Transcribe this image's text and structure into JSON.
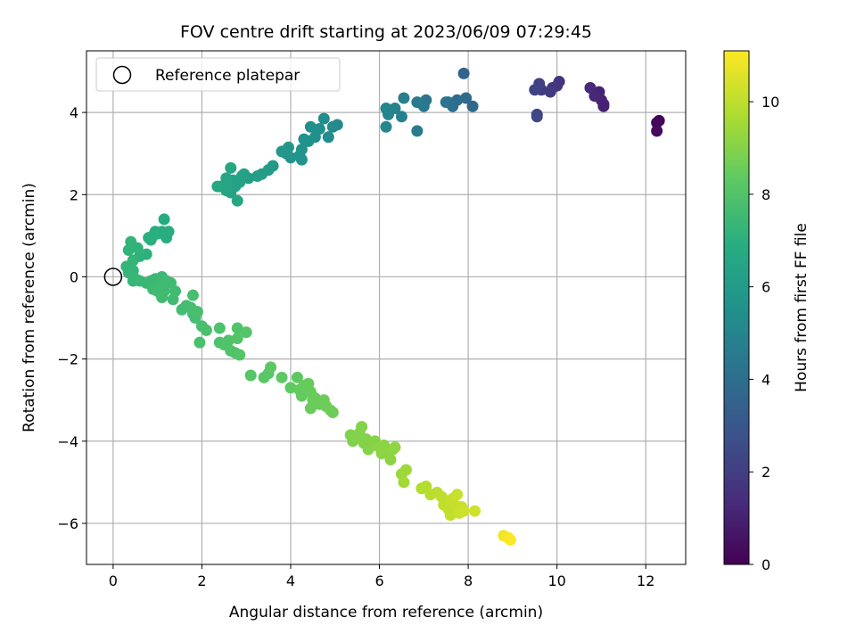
{
  "chart_data": {
    "type": "scatter",
    "title": "FOV centre drift starting at 2023/06/09 07:29:45",
    "xlabel": "Angular distance from reference (arcmin)",
    "ylabel": "Rotation from reference (arcmin)",
    "xlim": [
      -0.6,
      12.9
    ],
    "ylim": [
      -7.0,
      5.5
    ],
    "xticks": [
      0,
      2,
      4,
      6,
      8,
      10,
      12
    ],
    "yticks": [
      -6,
      -4,
      -2,
      0,
      2,
      4
    ],
    "grid": true,
    "legend": {
      "placement": "upper-left",
      "entries": [
        "Reference platepar"
      ]
    },
    "reference_point": {
      "x": 0,
      "y": 0,
      "label": "Reference platepar"
    },
    "colorbar": {
      "label": "Hours from first FF file",
      "colormap": "viridis",
      "range": [
        0,
        11.1
      ],
      "ticks": [
        0,
        2,
        4,
        6,
        8,
        10
      ]
    },
    "points": [
      {
        "x": 12.3,
        "y": 3.8,
        "c": 0.1
      },
      {
        "x": 12.25,
        "y": 3.75,
        "c": 0.2
      },
      {
        "x": 12.25,
        "y": 3.55,
        "c": 0.3
      },
      {
        "x": 11.05,
        "y": 4.2,
        "c": 1.0
      },
      {
        "x": 11.0,
        "y": 4.3,
        "c": 1.1
      },
      {
        "x": 10.95,
        "y": 4.5,
        "c": 1.1
      },
      {
        "x": 10.85,
        "y": 4.4,
        "c": 1.2
      },
      {
        "x": 10.75,
        "y": 4.6,
        "c": 1.3
      },
      {
        "x": 11.05,
        "y": 4.15,
        "c": 1.05
      },
      {
        "x": 10.05,
        "y": 4.75,
        "c": 1.6
      },
      {
        "x": 10.0,
        "y": 4.65,
        "c": 1.7
      },
      {
        "x": 9.9,
        "y": 4.6,
        "c": 1.8
      },
      {
        "x": 9.85,
        "y": 4.5,
        "c": 1.9
      },
      {
        "x": 9.65,
        "y": 4.55,
        "c": 2.0
      },
      {
        "x": 9.6,
        "y": 4.7,
        "c": 2.1
      },
      {
        "x": 9.5,
        "y": 4.55,
        "c": 2.2
      },
      {
        "x": 9.55,
        "y": 3.95,
        "c": 2.3
      },
      {
        "x": 9.55,
        "y": 3.9,
        "c": 2.4
      },
      {
        "x": 7.9,
        "y": 4.95,
        "c": 3.5
      },
      {
        "x": 8.1,
        "y": 4.15,
        "c": 3.7
      },
      {
        "x": 7.95,
        "y": 4.35,
        "c": 3.8
      },
      {
        "x": 7.75,
        "y": 4.3,
        "c": 3.9
      },
      {
        "x": 7.65,
        "y": 4.15,
        "c": 4.0
      },
      {
        "x": 7.55,
        "y": 4.25,
        "c": 4.1
      },
      {
        "x": 7.5,
        "y": 4.25,
        "c": 4.2
      },
      {
        "x": 7.05,
        "y": 4.3,
        "c": 4.3
      },
      {
        "x": 7.0,
        "y": 4.15,
        "c": 4.4
      },
      {
        "x": 6.85,
        "y": 4.25,
        "c": 4.5
      },
      {
        "x": 6.85,
        "y": 3.55,
        "c": 4.6
      },
      {
        "x": 6.55,
        "y": 4.35,
        "c": 4.7
      },
      {
        "x": 6.5,
        "y": 3.9,
        "c": 4.8
      },
      {
        "x": 6.35,
        "y": 4.1,
        "c": 4.9
      },
      {
        "x": 6.2,
        "y": 3.95,
        "c": 5.0
      },
      {
        "x": 6.15,
        "y": 4.1,
        "c": 5.0
      },
      {
        "x": 6.15,
        "y": 3.65,
        "c": 5.05
      },
      {
        "x": 5.05,
        "y": 3.7,
        "c": 5.2
      },
      {
        "x": 4.95,
        "y": 3.65,
        "c": 5.3
      },
      {
        "x": 4.85,
        "y": 3.4,
        "c": 5.35
      },
      {
        "x": 4.75,
        "y": 3.85,
        "c": 5.4
      },
      {
        "x": 4.65,
        "y": 3.6,
        "c": 5.45
      },
      {
        "x": 4.55,
        "y": 3.4,
        "c": 5.5
      },
      {
        "x": 4.45,
        "y": 3.65,
        "c": 5.5
      },
      {
        "x": 4.4,
        "y": 3.3,
        "c": 5.55
      },
      {
        "x": 4.3,
        "y": 3.35,
        "c": 5.6
      },
      {
        "x": 4.25,
        "y": 3.1,
        "c": 5.65
      },
      {
        "x": 4.2,
        "y": 2.95,
        "c": 5.7
      },
      {
        "x": 4.25,
        "y": 2.85,
        "c": 5.7
      },
      {
        "x": 4.0,
        "y": 2.9,
        "c": 5.75
      },
      {
        "x": 3.9,
        "y": 3.0,
        "c": 5.8
      },
      {
        "x": 3.95,
        "y": 3.15,
        "c": 5.8
      },
      {
        "x": 3.8,
        "y": 3.05,
        "c": 5.85
      },
      {
        "x": 3.6,
        "y": 2.7,
        "c": 6.0
      },
      {
        "x": 3.5,
        "y": 2.6,
        "c": 6.05
      },
      {
        "x": 3.35,
        "y": 2.5,
        "c": 6.1
      },
      {
        "x": 3.25,
        "y": 2.45,
        "c": 6.15
      },
      {
        "x": 3.05,
        "y": 2.4,
        "c": 6.2
      },
      {
        "x": 2.9,
        "y": 2.45,
        "c": 6.25
      },
      {
        "x": 2.85,
        "y": 2.3,
        "c": 6.3
      },
      {
        "x": 2.75,
        "y": 2.2,
        "c": 6.35
      },
      {
        "x": 2.7,
        "y": 2.35,
        "c": 6.35
      },
      {
        "x": 2.65,
        "y": 2.05,
        "c": 6.4
      },
      {
        "x": 2.6,
        "y": 2.3,
        "c": 6.4
      },
      {
        "x": 2.55,
        "y": 2.1,
        "c": 6.45
      },
      {
        "x": 2.55,
        "y": 2.4,
        "c": 6.45
      },
      {
        "x": 2.65,
        "y": 2.65,
        "c": 6.5
      },
      {
        "x": 2.4,
        "y": 2.2,
        "c": 6.5
      },
      {
        "x": 2.35,
        "y": 2.2,
        "c": 6.55
      },
      {
        "x": 2.8,
        "y": 1.85,
        "c": 6.55
      },
      {
        "x": 2.95,
        "y": 2.5,
        "c": 6.3
      },
      {
        "x": 1.15,
        "y": 1.4,
        "c": 6.8
      },
      {
        "x": 1.25,
        "y": 1.1,
        "c": 6.85
      },
      {
        "x": 1.2,
        "y": 0.95,
        "c": 6.9
      },
      {
        "x": 1.1,
        "y": 1.1,
        "c": 6.9
      },
      {
        "x": 1.0,
        "y": 1.05,
        "c": 6.95
      },
      {
        "x": 0.95,
        "y": 1.1,
        "c": 6.95
      },
      {
        "x": 0.85,
        "y": 0.9,
        "c": 7.0
      },
      {
        "x": 0.9,
        "y": 1.0,
        "c": 7.0
      },
      {
        "x": 0.8,
        "y": 0.95,
        "c": 7.0
      },
      {
        "x": 0.75,
        "y": 0.55,
        "c": 7.1
      },
      {
        "x": 0.6,
        "y": 0.5,
        "c": 7.1
      },
      {
        "x": 0.55,
        "y": 0.7,
        "c": 7.15
      },
      {
        "x": 0.4,
        "y": 0.85,
        "c": 7.2
      },
      {
        "x": 0.35,
        "y": 0.65,
        "c": 7.2
      },
      {
        "x": 0.45,
        "y": 0.4,
        "c": 7.25
      },
      {
        "x": 0.3,
        "y": 0.25,
        "c": 7.25
      },
      {
        "x": 0.45,
        "y": 0.15,
        "c": 7.3
      },
      {
        "x": 0.35,
        "y": 0.1,
        "c": 7.3
      },
      {
        "x": 0.5,
        "y": -0.05,
        "c": 7.35
      },
      {
        "x": 0.45,
        "y": -0.1,
        "c": 7.35
      },
      {
        "x": 0.6,
        "y": -0.1,
        "c": 7.4
      },
      {
        "x": 0.75,
        "y": -0.15,
        "c": 7.4
      },
      {
        "x": 0.85,
        "y": -0.1,
        "c": 7.45
      },
      {
        "x": 0.95,
        "y": -0.05,
        "c": 7.45
      },
      {
        "x": 0.9,
        "y": -0.3,
        "c": 7.5
      },
      {
        "x": 1.05,
        "y": -0.2,
        "c": 7.5
      },
      {
        "x": 1.1,
        "y": 0.0,
        "c": 7.5
      },
      {
        "x": 1.15,
        "y": -0.35,
        "c": 7.55
      },
      {
        "x": 1.2,
        "y": -0.1,
        "c": 7.55
      },
      {
        "x": 1.3,
        "y": -0.15,
        "c": 7.55
      },
      {
        "x": 1.35,
        "y": -0.55,
        "c": 7.6
      },
      {
        "x": 1.4,
        "y": -0.35,
        "c": 7.6
      },
      {
        "x": 1.1,
        "y": -0.5,
        "c": 7.6
      },
      {
        "x": 1.0,
        "y": -0.35,
        "c": 7.6
      },
      {
        "x": 1.55,
        "y": -0.8,
        "c": 7.65
      },
      {
        "x": 1.65,
        "y": -0.7,
        "c": 7.65
      },
      {
        "x": 1.75,
        "y": -0.75,
        "c": 7.7
      },
      {
        "x": 1.8,
        "y": -0.9,
        "c": 7.7
      },
      {
        "x": 1.85,
        "y": -1.0,
        "c": 7.7
      },
      {
        "x": 1.8,
        "y": -0.45,
        "c": 7.75
      },
      {
        "x": 1.9,
        "y": -0.85,
        "c": 7.75
      },
      {
        "x": 2.0,
        "y": -1.2,
        "c": 7.75
      },
      {
        "x": 1.95,
        "y": -1.6,
        "c": 7.8
      },
      {
        "x": 2.1,
        "y": -1.3,
        "c": 7.8
      },
      {
        "x": 2.4,
        "y": -1.25,
        "c": 7.9
      },
      {
        "x": 2.4,
        "y": -1.6,
        "c": 7.9
      },
      {
        "x": 2.5,
        "y": -1.65,
        "c": 7.95
      },
      {
        "x": 2.6,
        "y": -1.55,
        "c": 7.95
      },
      {
        "x": 2.65,
        "y": -1.8,
        "c": 8.0
      },
      {
        "x": 2.75,
        "y": -1.85,
        "c": 8.0
      },
      {
        "x": 2.8,
        "y": -1.25,
        "c": 8.0
      },
      {
        "x": 2.8,
        "y": -1.5,
        "c": 8.05
      },
      {
        "x": 2.85,
        "y": -1.9,
        "c": 8.05
      },
      {
        "x": 3.0,
        "y": -1.35,
        "c": 8.05
      },
      {
        "x": 3.1,
        "y": -2.4,
        "c": 8.1
      },
      {
        "x": 3.4,
        "y": -2.45,
        "c": 8.2
      },
      {
        "x": 3.5,
        "y": -2.35,
        "c": 8.2
      },
      {
        "x": 3.55,
        "y": -2.2,
        "c": 8.25
      },
      {
        "x": 3.8,
        "y": -2.45,
        "c": 8.3
      },
      {
        "x": 4.0,
        "y": -2.7,
        "c": 8.35
      },
      {
        "x": 4.15,
        "y": -2.45,
        "c": 8.35
      },
      {
        "x": 4.2,
        "y": -2.75,
        "c": 8.4
      },
      {
        "x": 4.25,
        "y": -2.9,
        "c": 8.4
      },
      {
        "x": 4.3,
        "y": -2.65,
        "c": 8.45
      },
      {
        "x": 4.4,
        "y": -2.6,
        "c": 8.45
      },
      {
        "x": 4.45,
        "y": -2.8,
        "c": 8.45
      },
      {
        "x": 4.5,
        "y": -3.0,
        "c": 8.5
      },
      {
        "x": 4.45,
        "y": -3.2,
        "c": 8.5
      },
      {
        "x": 4.55,
        "y": -2.95,
        "c": 8.5
      },
      {
        "x": 4.65,
        "y": -3.1,
        "c": 8.55
      },
      {
        "x": 4.75,
        "y": -3.0,
        "c": 8.55
      },
      {
        "x": 4.8,
        "y": -3.15,
        "c": 8.6
      },
      {
        "x": 4.9,
        "y": -3.25,
        "c": 8.6
      },
      {
        "x": 4.95,
        "y": -3.3,
        "c": 8.6
      },
      {
        "x": 5.35,
        "y": -3.85,
        "c": 8.9
      },
      {
        "x": 5.4,
        "y": -4.0,
        "c": 8.9
      },
      {
        "x": 5.45,
        "y": -3.9,
        "c": 8.95
      },
      {
        "x": 5.55,
        "y": -3.8,
        "c": 8.95
      },
      {
        "x": 5.6,
        "y": -3.65,
        "c": 8.95
      },
      {
        "x": 5.65,
        "y": -4.05,
        "c": 9.0
      },
      {
        "x": 5.7,
        "y": -3.95,
        "c": 9.0
      },
      {
        "x": 5.75,
        "y": -4.2,
        "c": 9.0
      },
      {
        "x": 5.85,
        "y": -4.1,
        "c": 9.05
      },
      {
        "x": 5.9,
        "y": -4.0,
        "c": 9.05
      },
      {
        "x": 6.0,
        "y": -4.15,
        "c": 9.1
      },
      {
        "x": 6.05,
        "y": -4.3,
        "c": 9.1
      },
      {
        "x": 6.1,
        "y": -4.1,
        "c": 9.1
      },
      {
        "x": 6.2,
        "y": -4.25,
        "c": 9.15
      },
      {
        "x": 6.25,
        "y": -4.45,
        "c": 9.15
      },
      {
        "x": 6.3,
        "y": -4.2,
        "c": 9.2
      },
      {
        "x": 6.35,
        "y": -4.15,
        "c": 9.2
      },
      {
        "x": 6.5,
        "y": -4.8,
        "c": 9.4
      },
      {
        "x": 6.6,
        "y": -4.7,
        "c": 9.45
      },
      {
        "x": 6.55,
        "y": -5.0,
        "c": 9.5
      },
      {
        "x": 6.95,
        "y": -5.15,
        "c": 9.8
      },
      {
        "x": 7.05,
        "y": -5.1,
        "c": 9.85
      },
      {
        "x": 7.15,
        "y": -5.3,
        "c": 9.9
      },
      {
        "x": 7.3,
        "y": -5.25,
        "c": 9.95
      },
      {
        "x": 7.4,
        "y": -5.35,
        "c": 10.0
      },
      {
        "x": 7.45,
        "y": -5.55,
        "c": 10.05
      },
      {
        "x": 7.5,
        "y": -5.45,
        "c": 10.05
      },
      {
        "x": 7.55,
        "y": -5.65,
        "c": 10.1
      },
      {
        "x": 7.6,
        "y": -5.8,
        "c": 10.1
      },
      {
        "x": 7.65,
        "y": -5.4,
        "c": 10.15
      },
      {
        "x": 7.7,
        "y": -5.55,
        "c": 10.15
      },
      {
        "x": 7.75,
        "y": -5.3,
        "c": 10.2
      },
      {
        "x": 7.8,
        "y": -5.75,
        "c": 10.2
      },
      {
        "x": 7.85,
        "y": -5.6,
        "c": 10.2
      },
      {
        "x": 7.9,
        "y": -5.7,
        "c": 10.25
      },
      {
        "x": 8.15,
        "y": -5.7,
        "c": 10.3
      },
      {
        "x": 8.8,
        "y": -6.3,
        "c": 10.9
      },
      {
        "x": 8.9,
        "y": -6.35,
        "c": 11.0
      },
      {
        "x": 8.95,
        "y": -6.4,
        "c": 11.05
      }
    ]
  }
}
